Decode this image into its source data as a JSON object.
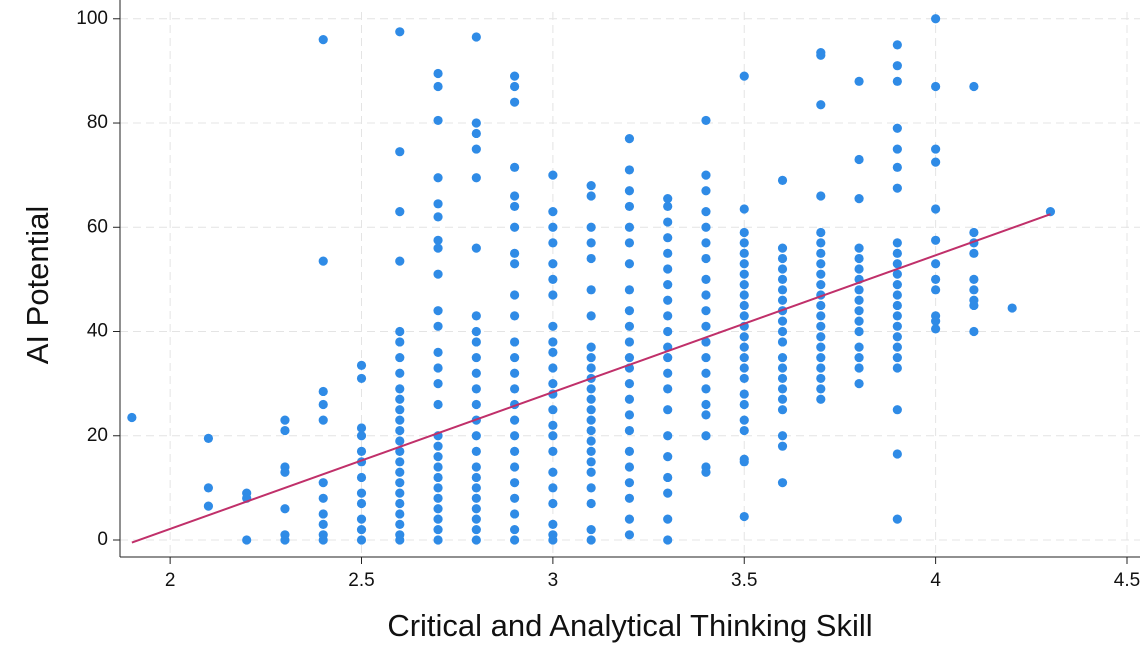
{
  "chart_data": {
    "type": "scatter",
    "xlabel": "Critical and Analytical Thinking Skill",
    "ylabel": "AI Potential",
    "xlim": [
      1.869,
      4.534
    ],
    "ylim": [
      -3.26,
      101.3
    ],
    "xticks": [
      2,
      2.5,
      3,
      3.5,
      4,
      4.5
    ],
    "yticks": [
      0,
      20,
      40,
      60,
      80,
      100
    ],
    "grid": true,
    "color": "#2f8be6",
    "x": [
      1.9,
      2.1,
      2.1,
      2.1,
      2.2,
      2.2,
      2.2,
      2.3,
      2.3,
      2.3,
      2.3,
      2.3,
      2.3,
      2.3,
      2.4,
      2.4,
      2.4,
      2.4,
      2.4,
      2.4,
      2.4,
      2.4,
      2.4,
      2.4,
      2.4,
      2.5,
      2.5,
      2.5,
      2.5,
      2.5,
      2.5,
      2.5,
      2.5,
      2.5,
      2.5,
      2.5,
      2.5,
      2.6,
      2.6,
      2.6,
      2.6,
      2.6,
      2.6,
      2.6,
      2.6,
      2.6,
      2.6,
      2.6,
      2.6,
      2.6,
      2.6,
      2.6,
      2.6,
      2.6,
      2.6,
      2.6,
      2.6,
      2.6,
      2.6,
      2.6,
      2.6,
      2.7,
      2.7,
      2.7,
      2.7,
      2.7,
      2.7,
      2.7,
      2.7,
      2.7,
      2.7,
      2.7,
      2.7,
      2.7,
      2.7,
      2.7,
      2.7,
      2.7,
      2.7,
      2.7,
      2.7,
      2.7,
      2.7,
      2.7,
      2.7,
      2.7,
      2.7,
      2.8,
      2.8,
      2.8,
      2.8,
      2.8,
      2.8,
      2.8,
      2.8,
      2.8,
      2.8,
      2.8,
      2.8,
      2.8,
      2.8,
      2.8,
      2.8,
      2.8,
      2.8,
      2.8,
      2.8,
      2.8,
      2.8,
      2.8,
      2.8,
      2.9,
      2.9,
      2.9,
      2.9,
      2.9,
      2.9,
      2.9,
      2.9,
      2.9,
      2.9,
      2.9,
      2.9,
      2.9,
      2.9,
      2.9,
      2.9,
      2.9,
      2.9,
      2.9,
      2.9,
      2.9,
      2.9,
      2.9,
      2.9,
      2.9,
      3,
      3,
      3,
      3,
      3,
      3,
      3,
      3,
      3,
      3,
      3,
      3,
      3,
      3,
      3,
      3,
      3,
      3,
      3,
      3,
      3,
      3,
      3,
      3.1,
      3.1,
      3.1,
      3.1,
      3.1,
      3.1,
      3.1,
      3.1,
      3.1,
      3.1,
      3.1,
      3.1,
      3.1,
      3.1,
      3.1,
      3.1,
      3.1,
      3.1,
      3.1,
      3.1,
      3.1,
      3.1,
      3.1,
      3.1,
      3.2,
      3.2,
      3.2,
      3.2,
      3.2,
      3.2,
      3.2,
      3.2,
      3.2,
      3.2,
      3.2,
      3.2,
      3.2,
      3.2,
      3.2,
      3.2,
      3.2,
      3.2,
      3.2,
      3.2,
      3.2,
      3.2,
      3.2,
      3.3,
      3.3,
      3.3,
      3.3,
      3.3,
      3.3,
      3.3,
      3.3,
      3.3,
      3.3,
      3.3,
      3.3,
      3.3,
      3.3,
      3.3,
      3.3,
      3.3,
      3.3,
      3.3,
      3.3,
      3.3,
      3.4,
      3.4,
      3.4,
      3.4,
      3.4,
      3.4,
      3.4,
      3.4,
      3.4,
      3.4,
      3.4,
      3.4,
      3.4,
      3.4,
      3.4,
      3.4,
      3.4,
      3.4,
      3.4,
      3.4,
      3.5,
      3.5,
      3.5,
      3.5,
      3.5,
      3.5,
      3.5,
      3.5,
      3.5,
      3.5,
      3.5,
      3.5,
      3.5,
      3.5,
      3.5,
      3.5,
      3.5,
      3.5,
      3.5,
      3.5,
      3.5,
      3.5,
      3.5,
      3.5,
      3.6,
      3.6,
      3.6,
      3.6,
      3.6,
      3.6,
      3.6,
      3.6,
      3.6,
      3.6,
      3.6,
      3.6,
      3.6,
      3.6,
      3.6,
      3.6,
      3.6,
      3.6,
      3.6,
      3.6,
      3.7,
      3.7,
      3.7,
      3.7,
      3.7,
      3.7,
      3.7,
      3.7,
      3.7,
      3.7,
      3.7,
      3.7,
      3.7,
      3.7,
      3.7,
      3.7,
      3.7,
      3.7,
      3.7,
      3.7,
      3.7,
      3.8,
      3.8,
      3.8,
      3.8,
      3.8,
      3.8,
      3.8,
      3.8,
      3.8,
      3.8,
      3.8,
      3.8,
      3.8,
      3.8,
      3.8,
      3.8,
      3.9,
      3.9,
      3.9,
      3.9,
      3.9,
      3.9,
      3.9,
      3.9,
      3.9,
      3.9,
      3.9,
      3.9,
      3.9,
      3.9,
      3.9,
      3.9,
      3.9,
      3.9,
      3.9,
      3.9,
      3.9,
      3.9,
      3.9,
      4,
      4,
      4,
      4,
      4,
      4,
      4,
      4,
      4,
      4,
      4,
      4,
      4.1,
      4.1,
      4.1,
      4.1,
      4.1,
      4.1,
      4.1,
      4.1,
      4.1,
      4.2,
      4.3
    ],
    "values": [
      23.5,
      19.5,
      10,
      6.5,
      9,
      8,
      0,
      23,
      21,
      14,
      13,
      6,
      1,
      0,
      96,
      53.5,
      28.5,
      26,
      23,
      11,
      8,
      5,
      3,
      1,
      0,
      33.5,
      31,
      21.5,
      20,
      17,
      15,
      12,
      9,
      7,
      4,
      2,
      0,
      97.5,
      74.5,
      63,
      53.5,
      40,
      38,
      35,
      32,
      29,
      27,
      25,
      23,
      21,
      19,
      17,
      15,
      13,
      11,
      9,
      7,
      5,
      3,
      1,
      0,
      89.5,
      87,
      80.5,
      69.5,
      64.5,
      62,
      57.5,
      56,
      51,
      44,
      41,
      36,
      33,
      30,
      26,
      20,
      18,
      16,
      14,
      12,
      10,
      8,
      6,
      4,
      2,
      0,
      96.5,
      80,
      78,
      75,
      69.5,
      56,
      43,
      40,
      38,
      35,
      32,
      29,
      26,
      23,
      20,
      17,
      14,
      12,
      10,
      8,
      6,
      4,
      2,
      0,
      89,
      87,
      84,
      71.5,
      66,
      64,
      60,
      55,
      53,
      47,
      43,
      38,
      35,
      32,
      29,
      26,
      23,
      20,
      17,
      14,
      11,
      8,
      5,
      2,
      0,
      70,
      63,
      60,
      57,
      53,
      50,
      47,
      41,
      38,
      36,
      33,
      30,
      28,
      25,
      22,
      20,
      17,
      13,
      10,
      7,
      3,
      1,
      0,
      68,
      66,
      60,
      57,
      54,
      48,
      43,
      37,
      35,
      33,
      31,
      29,
      27,
      25,
      23,
      21,
      19,
      17,
      15,
      13,
      10,
      7,
      2,
      0,
      77,
      71,
      67,
      64,
      60,
      57,
      53,
      48,
      44,
      41,
      38,
      35,
      33,
      30,
      27,
      24,
      21,
      17,
      14,
      11,
      8,
      4,
      1,
      65.5,
      64,
      61,
      58,
      55,
      52,
      49,
      46,
      43,
      40,
      37,
      35,
      32,
      29,
      25,
      20,
      16,
      12,
      9,
      4,
      0,
      80.5,
      70,
      67,
      63,
      60,
      57,
      54,
      50,
      47,
      44,
      41,
      38,
      35,
      32,
      29,
      26,
      24,
      20,
      14,
      13,
      89,
      63.5,
      59,
      57,
      55,
      53,
      51,
      49,
      47,
      45,
      43,
      41,
      39,
      37,
      35,
      33,
      31,
      28,
      26,
      23,
      21,
      15.5,
      15,
      4.5,
      69,
      56,
      54,
      52,
      50,
      48,
      46,
      44,
      42,
      40,
      38,
      35,
      33,
      31,
      29,
      27,
      25,
      20,
      18,
      11,
      93.5,
      93,
      83.5,
      66,
      59,
      57,
      55,
      53,
      51,
      49,
      47,
      45,
      43,
      41,
      39,
      37,
      35,
      33,
      31,
      29,
      27,
      88,
      73,
      65.5,
      56,
      54,
      52,
      50,
      48,
      46,
      44,
      42,
      40,
      37,
      35,
      33,
      30,
      95,
      91,
      88,
      79,
      75,
      71.5,
      67.5,
      57,
      55,
      53,
      51,
      49,
      47,
      45,
      43,
      41,
      39,
      37,
      35,
      33,
      25,
      16.5,
      4,
      100,
      87,
      75,
      72.5,
      63.5,
      57.5,
      53,
      50,
      48,
      43,
      42,
      40.5,
      87,
      59,
      57,
      55,
      50,
      48,
      46,
      45,
      40,
      44.5,
      63
    ],
    "fit": {
      "color": "#c0306a",
      "x": [
        1.9,
        4.3
      ],
      "values": [
        -0.5,
        62.5
      ]
    }
  }
}
